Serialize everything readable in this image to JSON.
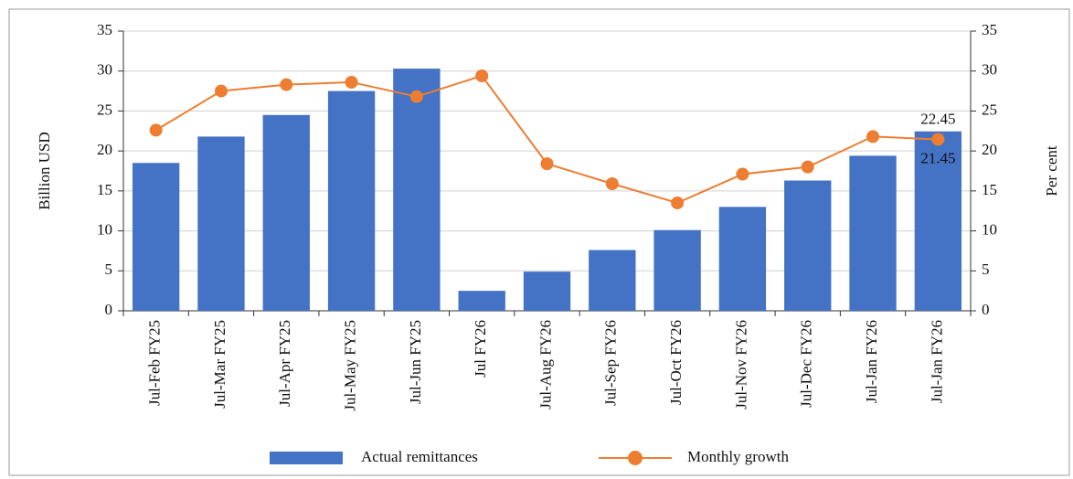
{
  "chart_data": {
    "type": "combo",
    "categories": [
      "Jul-Feb FY25",
      "Jul-Mar FY25",
      "Jul-Apr FY25",
      "Jul-May FY25",
      "Jul-Jun FY25",
      "Jul FY26",
      "Jul-Aug FY26",
      "Jul-Sep FY26",
      "Jul-Oct FY26",
      "Jul-Nov FY26",
      "Jul-Dec FY26",
      "Jul-Jan FY26",
      "Jul-Jan FY26"
    ],
    "series": [
      {
        "name": "Actual remittances",
        "type": "bar",
        "color": "#4472c4",
        "values": [
          18.5,
          21.8,
          24.5,
          27.5,
          30.3,
          2.5,
          4.9,
          7.6,
          10.1,
          13.0,
          16.3,
          19.4,
          22.45
        ],
        "value_labels": [
          null,
          null,
          null,
          null,
          null,
          null,
          null,
          null,
          null,
          null,
          null,
          null,
          "22.45"
        ]
      },
      {
        "name": "Monthly growth",
        "type": "line",
        "axis": "y2",
        "color": "#ed7d31",
        "values": [
          22.6,
          27.5,
          28.3,
          28.6,
          26.8,
          29.4,
          18.4,
          15.9,
          13.5,
          17.1,
          18.0,
          21.8,
          21.45
        ],
        "value_labels": [
          null,
          null,
          null,
          null,
          null,
          null,
          null,
          null,
          null,
          null,
          null,
          null,
          "21.45"
        ]
      }
    ],
    "ylabel": "Billion USD",
    "y2label": "Per cent",
    "ylim": [
      0,
      35
    ],
    "yticks": [
      0,
      5,
      10,
      15,
      20,
      25,
      30,
      35
    ],
    "y2lim": [
      0,
      35
    ],
    "y2ticks": [
      0,
      5,
      10,
      15,
      20,
      25,
      30,
      35
    ],
    "grid": true,
    "legend": "bottom"
  }
}
